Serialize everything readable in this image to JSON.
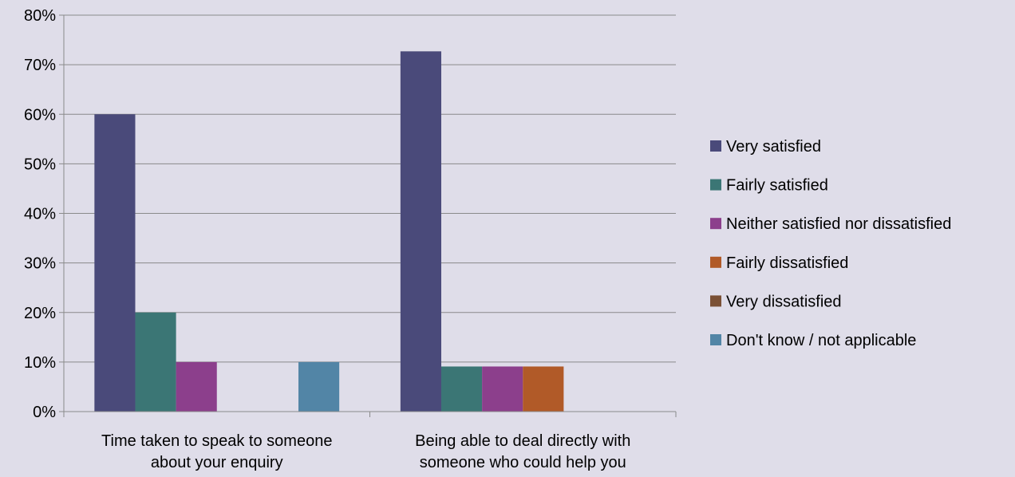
{
  "chart_data": {
    "type": "bar",
    "title": "",
    "xlabel": "",
    "ylabel": "",
    "ylim": [
      0,
      80
    ],
    "y_ticks": [
      "0%",
      "10%",
      "20%",
      "30%",
      "40%",
      "50%",
      "60%",
      "70%",
      "80%"
    ],
    "y_tick_values": [
      0,
      10,
      20,
      30,
      40,
      50,
      60,
      70,
      80
    ],
    "categories": [
      [
        "Time taken to speak to someone",
        "about your enquiry"
      ],
      [
        "Being able to deal directly with",
        "someone who could help you"
      ]
    ],
    "series": [
      {
        "name": "Very satisfied",
        "color": "#4a4a7a",
        "values": [
          60,
          72.7
        ]
      },
      {
        "name": "Fairly satisfied",
        "color": "#3b7675",
        "values": [
          20,
          9.1
        ]
      },
      {
        "name": "Neither satisfied nor dissatisfied",
        "color": "#8c3f8c",
        "values": [
          10,
          9.1
        ]
      },
      {
        "name": "Fairly dissatisfied",
        "color": "#b15a28",
        "values": [
          0,
          9.1
        ]
      },
      {
        "name": "Very dissatisfied",
        "color": "#7a5035",
        "values": [
          0,
          0
        ]
      },
      {
        "name": "Don't know / not applicable",
        "color": "#5285a6",
        "values": [
          10,
          0
        ]
      }
    ],
    "grid": true,
    "legend_position": "right"
  }
}
